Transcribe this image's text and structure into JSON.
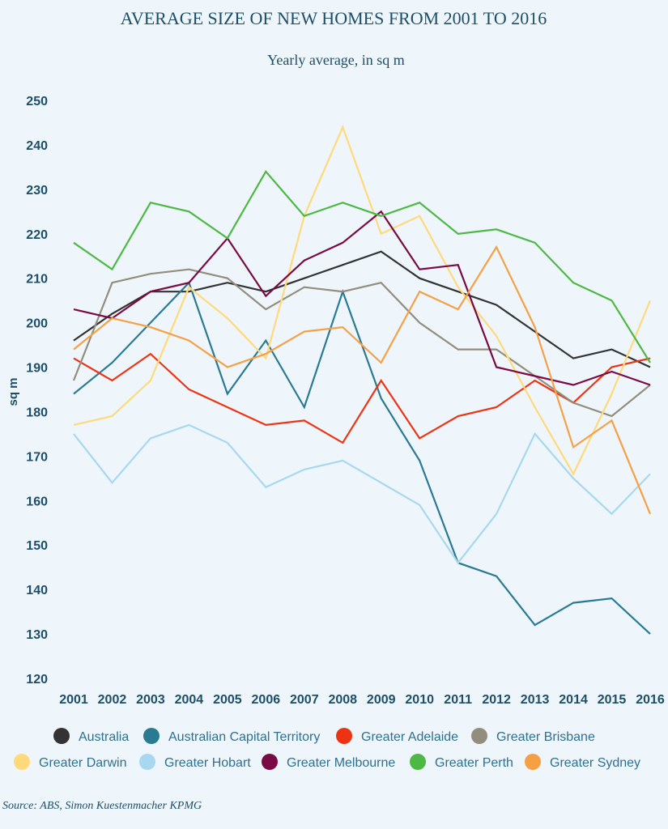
{
  "title": "AVERAGE SIZE OF NEW HOMES FROM 2001 TO 2016",
  "subtitle": "Yearly average, in sq m",
  "source": "Source: ABS, Simon Kuestenmacher KPMG",
  "chart_data": {
    "type": "line",
    "title": "AVERAGE SIZE OF NEW HOMES FROM 2001 TO 2016",
    "subtitle": "Yearly average, in sq m",
    "xlabel": "",
    "ylabel": "sq m",
    "ylim": [
      120,
      250
    ],
    "yticks": [
      120,
      130,
      140,
      150,
      160,
      170,
      180,
      190,
      200,
      210,
      220,
      230,
      240,
      250
    ],
    "grid": false,
    "legend_position": "bottom",
    "x": [
      "2001",
      "2002",
      "2003",
      "2004",
      "2005",
      "2006",
      "2007",
      "2008",
      "2009",
      "2010",
      "2011",
      "2012",
      "2013",
      "2014",
      "2015",
      "2016"
    ],
    "series": [
      {
        "name": "Australia",
        "color": "#333333",
        "values": [
          196,
          202,
          207,
          207,
          209,
          207,
          210,
          213,
          216,
          210,
          207,
          204,
          198,
          192,
          194,
          190
        ]
      },
      {
        "name": "Australian Capital Territory",
        "color": "#2a7a94",
        "values": [
          184,
          191,
          200,
          209,
          184,
          196,
          181,
          207,
          183,
          169,
          146,
          143,
          132,
          137,
          138,
          130
        ]
      },
      {
        "name": "Greater Adelaide",
        "color": "#ee3312",
        "values": [
          192,
          187,
          193,
          185,
          181,
          177,
          178,
          173,
          187,
          174,
          179,
          181,
          187,
          182,
          190,
          192
        ]
      },
      {
        "name": "Greater Brisbane",
        "color": "#928d7c",
        "values": [
          187,
          209,
          211,
          212,
          210,
          203,
          208,
          207,
          209,
          200,
          194,
          194,
          188,
          182,
          179,
          186
        ]
      },
      {
        "name": "Greater Darwin",
        "color": "#ffd97a",
        "values": [
          177,
          179,
          187,
          208,
          201,
          192,
          224,
          244,
          220,
          224,
          208,
          197,
          181,
          166,
          184,
          205
        ]
      },
      {
        "name": "Greater Hobart",
        "color": "#a7d8f0",
        "values": [
          175,
          164,
          174,
          177,
          173,
          163,
          167,
          169,
          164,
          159,
          146,
          157,
          175,
          165,
          157,
          166
        ]
      },
      {
        "name": "Greater Melbourne",
        "color": "#7a0a44",
        "values": [
          203,
          201,
          207,
          209,
          219,
          206,
          214,
          218,
          225,
          212,
          213,
          190,
          188,
          186,
          189,
          186
        ]
      },
      {
        "name": "Greater Perth",
        "color": "#4db843",
        "values": [
          218,
          212,
          227,
          225,
          219,
          234,
          224,
          227,
          224,
          227,
          220,
          221,
          218,
          209,
          205,
          191
        ]
      },
      {
        "name": "Greater Sydney",
        "color": "#f5a044",
        "values": [
          194,
          201,
          199,
          196,
          190,
          193,
          198,
          199,
          191,
          207,
          203,
          217,
          199,
          172,
          178,
          157
        ]
      }
    ]
  }
}
